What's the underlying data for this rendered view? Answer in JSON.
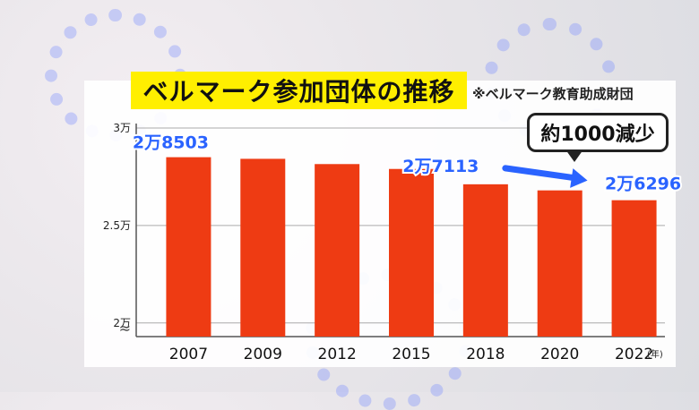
{
  "title": "ベルマーク参加団体の推移",
  "source": "※ベルマーク教育助成財団",
  "callout": "約1000減少",
  "colors": {
    "bar": "#ee3b13",
    "label_blue": "#2a63ff",
    "title_bg": "#ffef00"
  },
  "chart_data": {
    "type": "bar",
    "categories": [
      "2007",
      "2009",
      "2012",
      "2015",
      "2018",
      "2020",
      "2022"
    ],
    "values": [
      28503,
      28420,
      28150,
      27900,
      27113,
      26800,
      26296
    ],
    "ylim": [
      19300,
      30000
    ],
    "yticks": [
      {
        "value": 30000,
        "label": "3万"
      },
      {
        "value": 25000,
        "label": "2.5万"
      },
      {
        "value": 20000,
        "label": "2万"
      }
    ],
    "x_unit": "(年)",
    "data_labels": [
      {
        "category": "2007",
        "text": "2万8503"
      },
      {
        "category": "2018",
        "text": "2万7113"
      },
      {
        "category": "2022",
        "text": "2万6296"
      }
    ],
    "axis_break": "≈"
  }
}
